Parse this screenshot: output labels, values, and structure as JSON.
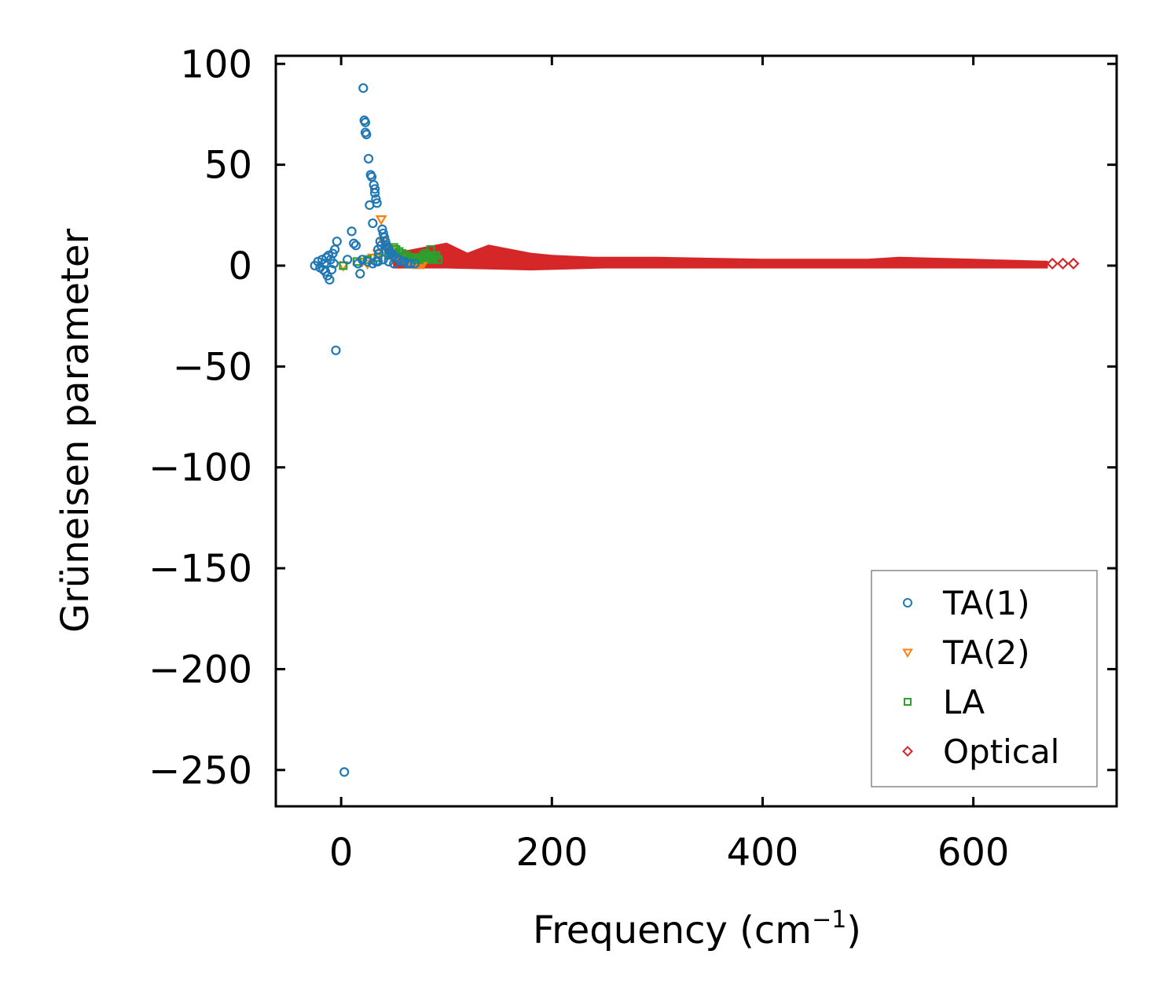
{
  "chart_data": {
    "type": "scatter",
    "title": "",
    "xlabel": "Frequency (cm",
    "xlabel_sup": "−1",
    "xlabel_end": ")",
    "ylabel": "Grüneisen parameter",
    "xlim": [
      -62,
      736
    ],
    "ylim": [
      -268,
      104
    ],
    "xticks": [
      0,
      200,
      400,
      600
    ],
    "xtick_labels": [
      "0",
      "200",
      "400",
      "600"
    ],
    "yticks": [
      100,
      50,
      0,
      -50,
      -100,
      -150,
      -200,
      -250
    ],
    "ytick_labels": [
      "100",
      "50",
      "0",
      "−50",
      "−100",
      "−150",
      "−200",
      "−250"
    ],
    "grid": false,
    "legend_position": "bottom-right",
    "series": [
      {
        "name": "TA(1)",
        "marker": "circle",
        "color": "#1f77b4",
        "points": [
          [
            -25,
            0
          ],
          [
            -22,
            2
          ],
          [
            -20,
            -1
          ],
          [
            -18,
            3
          ],
          [
            -17,
            -2
          ],
          [
            -16,
            1
          ],
          [
            -15,
            -3
          ],
          [
            -14,
            4
          ],
          [
            -13,
            -5
          ],
          [
            -12,
            5
          ],
          [
            -11,
            -7
          ],
          [
            -10,
            3
          ],
          [
            -9,
            -2
          ],
          [
            -8,
            6
          ],
          [
            -7,
            1
          ],
          [
            -6,
            8
          ],
          [
            -5,
            -42
          ],
          [
            -4,
            12
          ],
          [
            3,
            -251
          ],
          [
            6,
            3
          ],
          [
            10,
            17
          ],
          [
            12,
            11
          ],
          [
            14,
            10
          ],
          [
            16,
            1
          ],
          [
            18,
            -4
          ],
          [
            20,
            3
          ],
          [
            21,
            88
          ],
          [
            22,
            72
          ],
          [
            23,
            71
          ],
          [
            23,
            66
          ],
          [
            24,
            65
          ],
          [
            25,
            2
          ],
          [
            26,
            53
          ],
          [
            27,
            30
          ],
          [
            28,
            45
          ],
          [
            29,
            44
          ],
          [
            30,
            21
          ],
          [
            31,
            40
          ],
          [
            32,
            36
          ],
          [
            32,
            38
          ],
          [
            33,
            33
          ],
          [
            34,
            31
          ],
          [
            33,
            2
          ],
          [
            35,
            8
          ],
          [
            36,
            6
          ],
          [
            37,
            12
          ],
          [
            38,
            10
          ],
          [
            39,
            18
          ],
          [
            40,
            16
          ],
          [
            41,
            14
          ],
          [
            42,
            12
          ],
          [
            43,
            10
          ],
          [
            44,
            9
          ],
          [
            45,
            8
          ],
          [
            46,
            7
          ],
          [
            47,
            6
          ],
          [
            48,
            6
          ],
          [
            50,
            5
          ],
          [
            52,
            4
          ],
          [
            55,
            3
          ],
          [
            58,
            2
          ],
          [
            60,
            2
          ],
          [
            63,
            1
          ],
          [
            66,
            1
          ],
          [
            70,
            1
          ],
          [
            30,
            1
          ],
          [
            35,
            2
          ],
          [
            40,
            3
          ],
          [
            45,
            2
          ],
          [
            50,
            1
          ]
        ]
      },
      {
        "name": "TA(2)",
        "marker": "triangle-down",
        "color": "#ff7f0e",
        "points": [
          [
            2,
            0
          ],
          [
            20,
            2
          ],
          [
            25,
            1
          ],
          [
            30,
            4
          ],
          [
            35,
            6
          ],
          [
            38,
            23
          ],
          [
            40,
            12
          ],
          [
            42,
            10
          ],
          [
            44,
            9
          ],
          [
            46,
            8
          ],
          [
            48,
            7
          ],
          [
            50,
            6
          ],
          [
            52,
            5
          ],
          [
            54,
            4
          ],
          [
            56,
            4
          ],
          [
            58,
            3
          ],
          [
            60,
            3
          ],
          [
            62,
            2
          ],
          [
            64,
            2
          ],
          [
            66,
            2
          ],
          [
            68,
            1
          ],
          [
            70,
            1
          ],
          [
            72,
            1
          ],
          [
            74,
            1
          ],
          [
            76,
            1
          ],
          [
            78,
            1
          ]
        ]
      },
      {
        "name": "LA",
        "marker": "square",
        "color": "#2ca02c",
        "points": [
          [
            2,
            0
          ],
          [
            15,
            2
          ],
          [
            25,
            3
          ],
          [
            35,
            4
          ],
          [
            45,
            5
          ],
          [
            50,
            9
          ],
          [
            52,
            8
          ],
          [
            55,
            7
          ],
          [
            58,
            6
          ],
          [
            60,
            5
          ],
          [
            62,
            5
          ],
          [
            64,
            4
          ],
          [
            66,
            4
          ],
          [
            68,
            4
          ],
          [
            70,
            3
          ],
          [
            72,
            3
          ],
          [
            74,
            3
          ],
          [
            76,
            4
          ],
          [
            78,
            5
          ],
          [
            80,
            6
          ],
          [
            82,
            5
          ],
          [
            84,
            4
          ],
          [
            85,
            8
          ],
          [
            86,
            3
          ],
          [
            88,
            4
          ],
          [
            90,
            5
          ],
          [
            92,
            3
          ]
        ]
      },
      {
        "name": "Optical",
        "marker": "diamond",
        "color": "#d62728",
        "points": [
          [
            675,
            1
          ],
          [
            685,
            1
          ],
          [
            695,
            1
          ]
        ],
        "dense_band": {
          "x_range": [
            50,
            670
          ],
          "upper": [
            [
              50,
              6
            ],
            [
              80,
              9
            ],
            [
              100,
              11
            ],
            [
              120,
              6
            ],
            [
              140,
              10
            ],
            [
              160,
              8
            ],
            [
              180,
              6
            ],
            [
              200,
              5
            ],
            [
              240,
              4
            ],
            [
              300,
              4
            ],
            [
              400,
              3
            ],
            [
              500,
              3
            ],
            [
              530,
              4
            ],
            [
              600,
              3
            ],
            [
              670,
              2
            ]
          ],
          "lower": [
            [
              50,
              -1
            ],
            [
              100,
              -1
            ],
            [
              180,
              -2
            ],
            [
              250,
              -1
            ],
            [
              350,
              -1
            ],
            [
              500,
              -1
            ],
            [
              670,
              -1
            ]
          ]
        }
      }
    ]
  }
}
